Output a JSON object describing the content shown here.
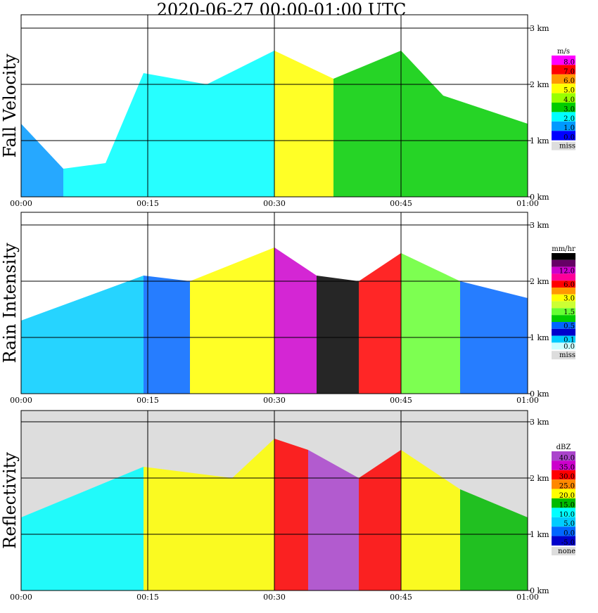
{
  "title": "2020-06-27   00:00-01:00 UTC",
  "x_ticks": [
    "00:00",
    "00:15",
    "00:30",
    "00:45",
    "01:00"
  ],
  "y_ticks": [
    "0 km",
    "1 km",
    "2 km",
    "3 km"
  ],
  "chart_data": [
    {
      "type": "heatmap",
      "name": "fall_velocity",
      "ylabel": "Fall Velocity",
      "colorbar": {
        "unit": "m/s",
        "entries": [
          {
            "label": "8.0",
            "color": "#ff00ff"
          },
          {
            "label": "7.0",
            "color": "#ff0000"
          },
          {
            "label": "6.0",
            "color": "#ff9900"
          },
          {
            "label": "5.0",
            "color": "#ffff00"
          },
          {
            "label": "4.0",
            "color": "#99ff00"
          },
          {
            "label": "3.0",
            "color": "#00cc00"
          },
          {
            "label": "2.0",
            "color": "#00ffff"
          },
          {
            "label": "1.0",
            "color": "#0099ff"
          },
          {
            "label": "0.0",
            "color": "#0000ff"
          }
        ],
        "missing": {
          "label": "miss",
          "color": "#dddddd"
        }
      },
      "background": "#ffffff",
      "xlim": [
        "00:00",
        "01:00"
      ],
      "ylim_km": [
        0,
        3.1
      ],
      "profile": [
        {
          "t": 0.0,
          "top_km": 1.3,
          "value": "1.0"
        },
        {
          "t": 5.0,
          "top_km": 0.5,
          "value": "2.0"
        },
        {
          "t": 10.0,
          "top_km": 0.6,
          "value": "2.0"
        },
        {
          "t": 14.5,
          "top_km": 2.2,
          "value": "2.0"
        },
        {
          "t": 22.0,
          "top_km": 2.0,
          "value": "2.0"
        },
        {
          "t": 30.0,
          "top_km": 2.6,
          "value": "5.0"
        },
        {
          "t": 37.0,
          "top_km": 2.1,
          "value": "3.0"
        },
        {
          "t": 45.0,
          "top_km": 2.6,
          "value": "3.0"
        },
        {
          "t": 50.0,
          "top_km": 1.8,
          "value": "3.0"
        },
        {
          "t": 60.0,
          "top_km": 1.3,
          "value": "2.0"
        }
      ]
    },
    {
      "type": "heatmap",
      "name": "rain_intensity",
      "ylabel": "Rain Intensity",
      "colorbar": {
        "unit": "mm/hr",
        "entries": [
          {
            "label": "48.0",
            "color": "#000000"
          },
          {
            "label": "",
            "color": "#660066"
          },
          {
            "label": "12.0",
            "color": "#cc00cc"
          },
          {
            "label": "",
            "color": "#ff0099"
          },
          {
            "label": "6.0",
            "color": "#ff0000"
          },
          {
            "label": "",
            "color": "#ff9900"
          },
          {
            "label": "3.0",
            "color": "#ffff00"
          },
          {
            "label": "",
            "color": "#ccff33"
          },
          {
            "label": "1.5",
            "color": "#66ff33"
          },
          {
            "label": "",
            "color": "#00cc00"
          },
          {
            "label": "0.5",
            "color": "#0066ff"
          },
          {
            "label": "",
            "color": "#0000cc"
          },
          {
            "label": "0.1",
            "color": "#00ccff"
          },
          {
            "label": "0.0",
            "color": "#ccffff"
          }
        ],
        "missing": {
          "label": "miss",
          "color": "#dddddd"
        }
      },
      "background": "#ffffff",
      "xlim": [
        "00:00",
        "01:00"
      ],
      "ylim_km": [
        0,
        3.1
      ],
      "profile": [
        {
          "t": 0.0,
          "top_km": 1.3,
          "value": "0.1"
        },
        {
          "t": 14.5,
          "top_km": 2.1,
          "value": "0.5"
        },
        {
          "t": 20.0,
          "top_km": 2.0,
          "value": "3.0"
        },
        {
          "t": 30.0,
          "top_km": 2.6,
          "value": "12.0"
        },
        {
          "t": 35.0,
          "top_km": 2.1,
          "value": "48.0"
        },
        {
          "t": 40.0,
          "top_km": 2.0,
          "value": "6.0"
        },
        {
          "t": 45.0,
          "top_km": 2.5,
          "value": "1.5"
        },
        {
          "t": 52.0,
          "top_km": 2.0,
          "value": "0.5"
        },
        {
          "t": 60.0,
          "top_km": 1.7,
          "value": "0.1"
        }
      ]
    },
    {
      "type": "heatmap",
      "name": "reflectivity",
      "ylabel": "Reflectivity",
      "colorbar": {
        "unit": "dBZ",
        "entries": [
          {
            "label": "40.0",
            "color": "#aa44cc"
          },
          {
            "label": "35.0",
            "color": "#cc00cc"
          },
          {
            "label": "30.0",
            "color": "#ff0000"
          },
          {
            "label": "25.0",
            "color": "#ff8800"
          },
          {
            "label": "20.0",
            "color": "#ffff00"
          },
          {
            "label": "15.0",
            "color": "#00bb00"
          },
          {
            "label": "10.0",
            "color": "#00ffff"
          },
          {
            "label": "5.0",
            "color": "#00ccff"
          },
          {
            "label": "0.0",
            "color": "#0066ff"
          },
          {
            "label": "-5.0",
            "color": "#0000cc"
          }
        ],
        "missing": {
          "label": "none",
          "color": "#dddddd"
        }
      },
      "background": "#dddddd",
      "xlim": [
        "00:00",
        "01:00"
      ],
      "ylim_km": [
        0,
        3.1
      ],
      "profile": [
        {
          "t": 0.0,
          "top_km": 1.3,
          "value": "10.0"
        },
        {
          "t": 14.5,
          "top_km": 2.2,
          "value": "20.0"
        },
        {
          "t": 25.0,
          "top_km": 2.0,
          "value": "20.0"
        },
        {
          "t": 30.0,
          "top_km": 2.7,
          "value": "30.0"
        },
        {
          "t": 34.0,
          "top_km": 2.5,
          "value": "40.0"
        },
        {
          "t": 40.0,
          "top_km": 2.0,
          "value": "30.0"
        },
        {
          "t": 45.0,
          "top_km": 2.5,
          "value": "20.0"
        },
        {
          "t": 52.0,
          "top_km": 1.8,
          "value": "15.0"
        },
        {
          "t": 60.0,
          "top_km": 1.3,
          "value": "10.0"
        }
      ]
    }
  ]
}
